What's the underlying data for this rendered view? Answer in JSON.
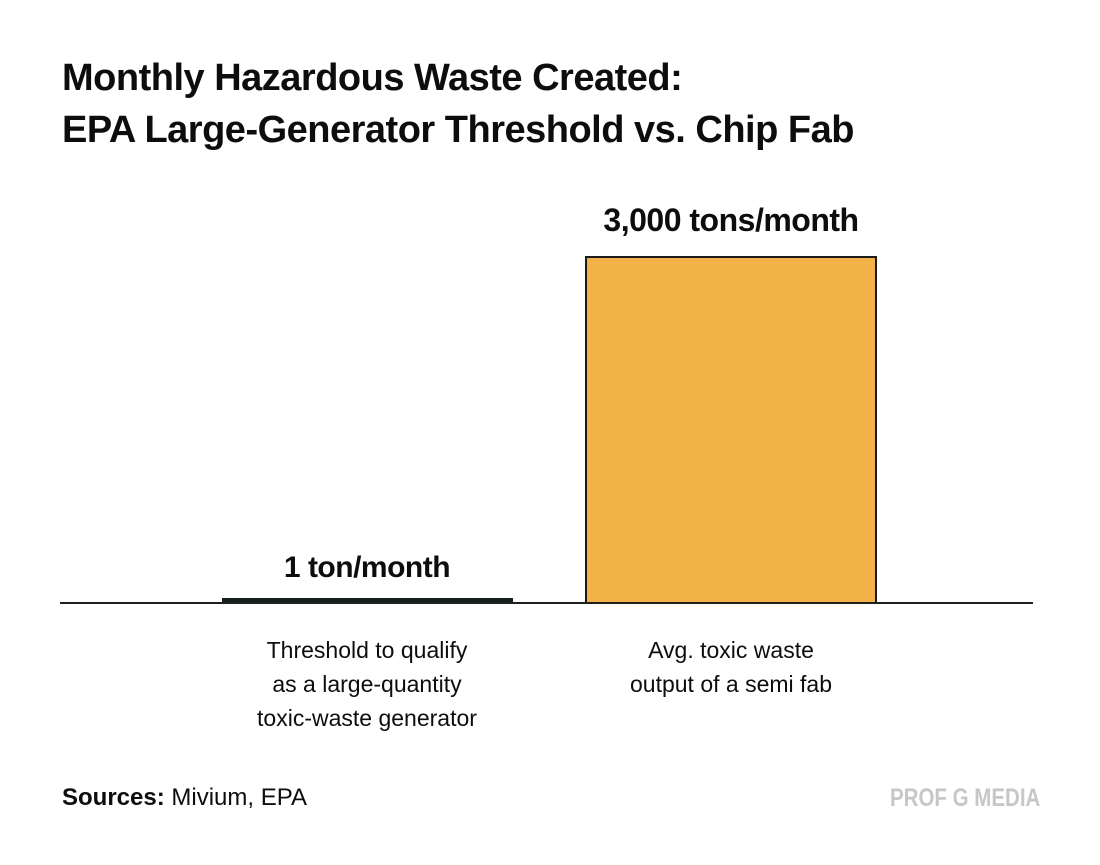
{
  "title": {
    "line1": "Monthly Hazardous Waste Created:",
    "line2": "EPA Large-Generator Threshold vs. Chip Fab"
  },
  "chart": {
    "bar_threshold": {
      "value_label": "1 ton/month",
      "caption_lines": [
        "Threshold to qualify",
        "as a large-quantity",
        "toxic-waste generator"
      ]
    },
    "bar_fab": {
      "value_label": "3,000 tons/month",
      "caption_lines": [
        "Avg. toxic waste",
        "output of a semi fab"
      ]
    }
  },
  "footer": {
    "sources_label": "Sources:",
    "sources_value": " Mivium, EPA",
    "brand": "PROF G MEDIA"
  },
  "colors": {
    "bar_fab_fill": "#f2b247",
    "bar_fab_border": "#1a1a1a",
    "bar_threshold_fill": "#141f1a",
    "axis": "#1f1f1f",
    "brand_gray": "#c7c7c7",
    "text": "#0d0d0d",
    "background": "#ffffff"
  },
  "chart_data": {
    "type": "bar",
    "title": "Monthly Hazardous Waste Created: EPA Large-Generator Threshold vs. Chip Fab",
    "categories": [
      "Threshold to qualify as a large-quantity toxic-waste generator",
      "Avg. toxic waste output of a semi fab"
    ],
    "values": [
      1,
      3000
    ],
    "value_labels": [
      "1 ton/month",
      "3,000 tons/month"
    ],
    "unit": "tons/month",
    "bar_colors": [
      "#141f1a",
      "#f2b247"
    ],
    "xlabel": "",
    "ylabel": "",
    "ylim": [
      0,
      3000
    ],
    "grid": false,
    "legend": false,
    "annotations": [
      "Sources: Mivium, EPA",
      "PROF G MEDIA"
    ]
  }
}
